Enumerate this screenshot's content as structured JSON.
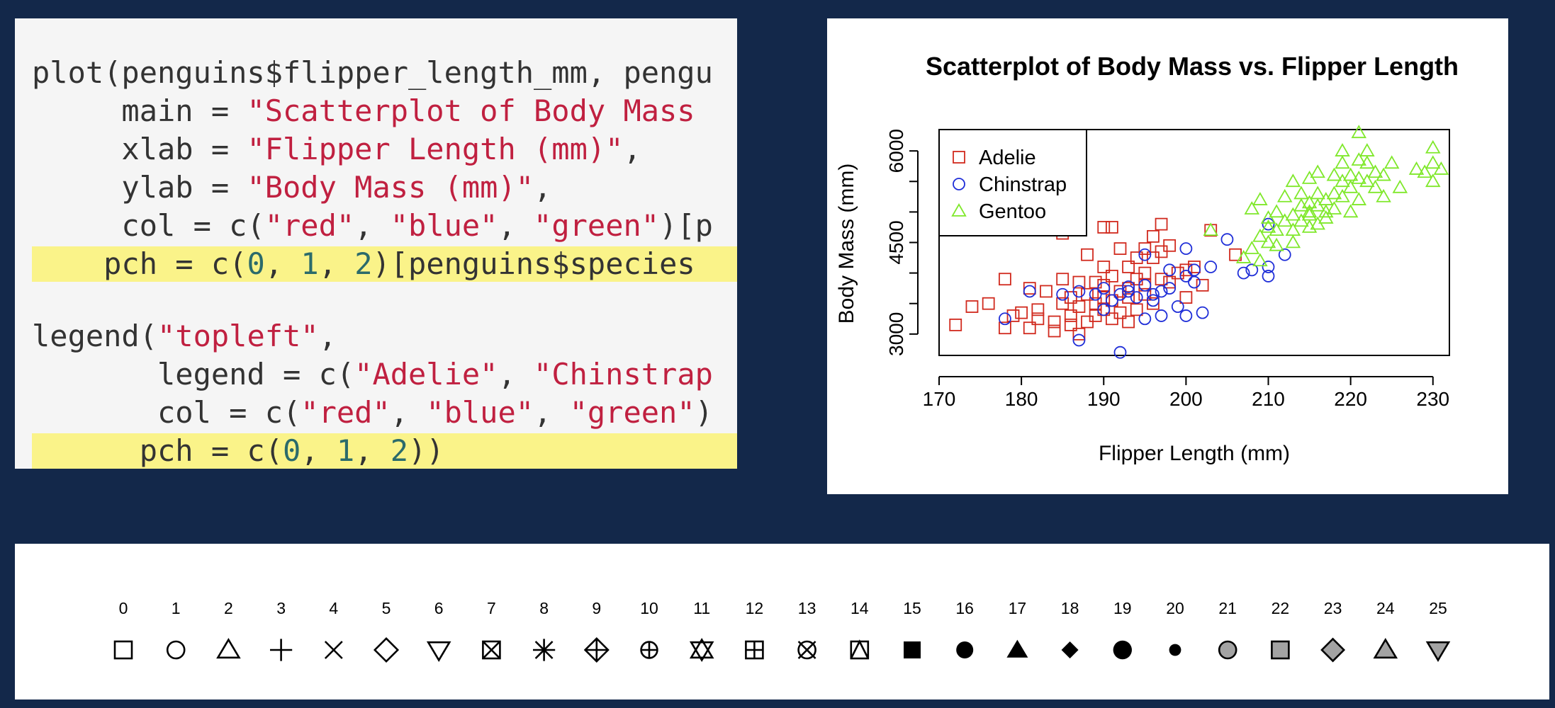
{
  "code": {
    "lines": [
      {
        "hl": false,
        "tokens": [
          {
            "t": "plain",
            "v": "plot(penguins$flipper_length_mm, pengu"
          }
        ]
      },
      {
        "hl": false,
        "tokens": [
          {
            "t": "plain",
            "v": "     main = "
          },
          {
            "t": "str",
            "v": "\"Scatterplot of Body Mass"
          }
        ]
      },
      {
        "hl": false,
        "tokens": [
          {
            "t": "plain",
            "v": "     xlab = "
          },
          {
            "t": "str",
            "v": "\"Flipper Length (mm)\""
          },
          {
            "t": "plain",
            "v": ","
          }
        ]
      },
      {
        "hl": false,
        "tokens": [
          {
            "t": "plain",
            "v": "     ylab = "
          },
          {
            "t": "str",
            "v": "\"Body Mass (mm)\""
          },
          {
            "t": "plain",
            "v": ","
          }
        ]
      },
      {
        "hl": false,
        "tokens": [
          {
            "t": "plain",
            "v": "     col = c("
          },
          {
            "t": "str",
            "v": "\"red\""
          },
          {
            "t": "plain",
            "v": ", "
          },
          {
            "t": "str",
            "v": "\"blue\""
          },
          {
            "t": "plain",
            "v": ", "
          },
          {
            "t": "str",
            "v": "\"green\""
          },
          {
            "t": "plain",
            "v": ")[p"
          }
        ]
      },
      {
        "hl": true,
        "tokens": [
          {
            "t": "plain",
            "v": "    pch = c("
          },
          {
            "t": "num",
            "v": "0"
          },
          {
            "t": "plain",
            "v": ", "
          },
          {
            "t": "num",
            "v": "1"
          },
          {
            "t": "plain",
            "v": ", "
          },
          {
            "t": "num",
            "v": "2"
          },
          {
            "t": "plain",
            "v": ")[penguins$species"
          }
        ]
      },
      {
        "hl": false,
        "tokens": [
          {
            "t": "plain",
            "v": ""
          }
        ]
      },
      {
        "hl": false,
        "tokens": [
          {
            "t": "plain",
            "v": "legend("
          },
          {
            "t": "str",
            "v": "\"topleft\""
          },
          {
            "t": "plain",
            "v": ","
          }
        ]
      },
      {
        "hl": false,
        "tokens": [
          {
            "t": "plain",
            "v": "       legend = c("
          },
          {
            "t": "str",
            "v": "\"Adelie\""
          },
          {
            "t": "plain",
            "v": ", "
          },
          {
            "t": "str",
            "v": "\"Chinstrap"
          }
        ]
      },
      {
        "hl": false,
        "tokens": [
          {
            "t": "plain",
            "v": "       col = c("
          },
          {
            "t": "str",
            "v": "\"red\""
          },
          {
            "t": "plain",
            "v": ", "
          },
          {
            "t": "str",
            "v": "\"blue\""
          },
          {
            "t": "plain",
            "v": ", "
          },
          {
            "t": "str",
            "v": "\"green\""
          },
          {
            "t": "plain",
            "v": ")"
          }
        ]
      },
      {
        "hl": true,
        "tokens": [
          {
            "t": "plain",
            "v": "      pch = c("
          },
          {
            "t": "num",
            "v": "0"
          },
          {
            "t": "plain",
            "v": ", "
          },
          {
            "t": "num",
            "v": "1"
          },
          {
            "t": "plain",
            "v": ", "
          },
          {
            "t": "num",
            "v": "2"
          },
          {
            "t": "plain",
            "v": "))"
          }
        ]
      }
    ]
  },
  "chart_data": {
    "type": "scatter",
    "title": "Scatterplot of Body Mass vs. Flipper Length",
    "xlabel": "Flipper Length (mm)",
    "ylabel": "Body Mass (mm)",
    "xlim": [
      170,
      232
    ],
    "ylim": [
      2650,
      6350
    ],
    "xticks": [
      170,
      180,
      190,
      200,
      210,
      220,
      230
    ],
    "yticks": [
      3000,
      3500,
      4000,
      4500,
      5000,
      5500,
      6000
    ],
    "yticks_labeled": [
      3000,
      4500,
      6000
    ],
    "grid": false,
    "legend_position": "top-left",
    "series": [
      {
        "name": "Adelie",
        "color": "#d12a1e",
        "pch": 0,
        "points": [
          [
            172,
            3150
          ],
          [
            174,
            3450
          ],
          [
            176,
            3500
          ],
          [
            178,
            3100
          ],
          [
            178,
            3900
          ],
          [
            179,
            3300
          ],
          [
            180,
            3350
          ],
          [
            181,
            3750
          ],
          [
            181,
            3100
          ],
          [
            182,
            3400
          ],
          [
            182,
            3250
          ],
          [
            183,
            3700
          ],
          [
            184,
            3050
          ],
          [
            184,
            3200
          ],
          [
            185,
            3500
          ],
          [
            185,
            4650
          ],
          [
            185,
            3900
          ],
          [
            186,
            3150
          ],
          [
            186,
            3600
          ],
          [
            186,
            3300
          ],
          [
            187,
            3850
          ],
          [
            187,
            3000
          ],
          [
            187,
            3450
          ],
          [
            188,
            3200
          ],
          [
            188,
            3650
          ],
          [
            188,
            4300
          ],
          [
            189,
            3500
          ],
          [
            189,
            3850
          ],
          [
            189,
            3300
          ],
          [
            190,
            4100
          ],
          [
            190,
            3400
          ],
          [
            190,
            3800
          ],
          [
            190,
            3600
          ],
          [
            190,
            4750
          ],
          [
            191,
            3550
          ],
          [
            191,
            3250
          ],
          [
            191,
            3950
          ],
          [
            191,
            4750
          ],
          [
            192,
            3700
          ],
          [
            192,
            3350
          ],
          [
            192,
            4400
          ],
          [
            193,
            3750
          ],
          [
            193,
            3600
          ],
          [
            193,
            4100
          ],
          [
            193,
            3200
          ],
          [
            194,
            3900
          ],
          [
            194,
            4250
          ],
          [
            194,
            3400
          ],
          [
            195,
            3650
          ],
          [
            195,
            4000
          ],
          [
            195,
            4400
          ],
          [
            195,
            3800
          ],
          [
            196,
            4250
          ],
          [
            196,
            3500
          ],
          [
            196,
            4600
          ],
          [
            197,
            3900
          ],
          [
            197,
            4800
          ],
          [
            197,
            4350
          ],
          [
            198,
            3850
          ],
          [
            198,
            4450
          ],
          [
            199,
            4000
          ],
          [
            200,
            4050
          ],
          [
            200,
            3600
          ],
          [
            201,
            4100
          ],
          [
            202,
            3800
          ],
          [
            203,
            4700
          ],
          [
            206,
            4300
          ]
        ]
      },
      {
        "name": "Chinstrap",
        "color": "#1f2ed8",
        "pch": 1,
        "points": [
          [
            178,
            3250
          ],
          [
            181,
            3700
          ],
          [
            185,
            3650
          ],
          [
            187,
            3700
          ],
          [
            187,
            2900
          ],
          [
            189,
            3650
          ],
          [
            190,
            3400
          ],
          [
            190,
            3750
          ],
          [
            191,
            3550
          ],
          [
            192,
            2700
          ],
          [
            192,
            3650
          ],
          [
            193,
            3700
          ],
          [
            193,
            3775
          ],
          [
            194,
            3600
          ],
          [
            195,
            3250
          ],
          [
            195,
            3800
          ],
          [
            195,
            4300
          ],
          [
            196,
            3550
          ],
          [
            196,
            3650
          ],
          [
            197,
            3700
          ],
          [
            197,
            3300
          ],
          [
            198,
            3750
          ],
          [
            198,
            4050
          ],
          [
            199,
            3450
          ],
          [
            200,
            3300
          ],
          [
            200,
            3950
          ],
          [
            200,
            4400
          ],
          [
            201,
            4050
          ],
          [
            201,
            3850
          ],
          [
            202,
            3350
          ],
          [
            203,
            4100
          ],
          [
            205,
            4550
          ],
          [
            207,
            4000
          ],
          [
            208,
            4050
          ],
          [
            210,
            3950
          ],
          [
            210,
            4100
          ],
          [
            210,
            4800
          ],
          [
            212,
            4300
          ]
        ]
      },
      {
        "name": "Gentoo",
        "color": "#7fe82a",
        "pch": 2,
        "points": [
          [
            203,
            4700
          ],
          [
            207,
            4250
          ],
          [
            208,
            4400
          ],
          [
            208,
            5050
          ],
          [
            209,
            4600
          ],
          [
            209,
            5200
          ],
          [
            209,
            4200
          ],
          [
            210,
            4500
          ],
          [
            210,
            4750
          ],
          [
            210,
            4900
          ],
          [
            211,
            4700
          ],
          [
            211,
            5000
          ],
          [
            211,
            4450
          ],
          [
            212,
            4850
          ],
          [
            212,
            5250
          ],
          [
            213,
            4500
          ],
          [
            213,
            4950
          ],
          [
            213,
            5500
          ],
          [
            213,
            4700
          ],
          [
            214,
            4850
          ],
          [
            214,
            5100
          ],
          [
            214,
            5300
          ],
          [
            215,
            4750
          ],
          [
            215,
            5000
          ],
          [
            215,
            5150
          ],
          [
            215,
            5550
          ],
          [
            215,
            4950
          ],
          [
            216,
            4800
          ],
          [
            216,
            5100
          ],
          [
            216,
            5300
          ],
          [
            216,
            5650
          ],
          [
            217,
            5000
          ],
          [
            217,
            5200
          ],
          [
            217,
            4900
          ],
          [
            218,
            5300
          ],
          [
            218,
            5600
          ],
          [
            218,
            5050
          ],
          [
            219,
            5250
          ],
          [
            219,
            5500
          ],
          [
            219,
            5800
          ],
          [
            220,
            5400
          ],
          [
            220,
            5000
          ],
          [
            220,
            5600
          ],
          [
            221,
            5550
          ],
          [
            221,
            5200
          ],
          [
            221,
            6300
          ],
          [
            221,
            5850
          ],
          [
            222,
            5500
          ],
          [
            222,
            5800
          ],
          [
            223,
            5400
          ],
          [
            223,
            5650
          ],
          [
            224,
            5600
          ],
          [
            224,
            5250
          ],
          [
            225,
            5800
          ],
          [
            226,
            5400
          ],
          [
            228,
            5700
          ],
          [
            229,
            5650
          ],
          [
            230,
            5800
          ],
          [
            230,
            6050
          ],
          [
            230,
            5500
          ],
          [
            231,
            5700
          ],
          [
            222,
            6000
          ],
          [
            219,
            6000
          ]
        ]
      }
    ]
  },
  "pch_reference": {
    "labels": [
      "0",
      "1",
      "2",
      "3",
      "4",
      "5",
      "6",
      "7",
      "8",
      "9",
      "10",
      "11",
      "12",
      "13",
      "14",
      "15",
      "16",
      "17",
      "18",
      "19",
      "20",
      "21",
      "22",
      "23",
      "24",
      "25"
    ]
  }
}
